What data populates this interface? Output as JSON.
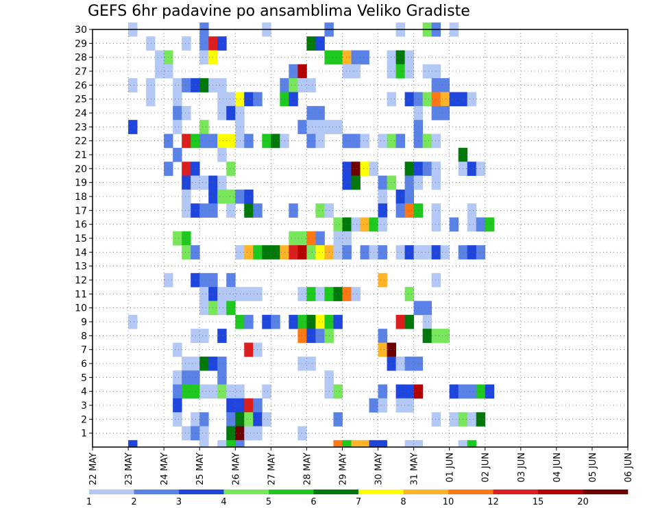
{
  "chart_data": {
    "type": "heatmap",
    "title": "GEFS 6hr padavine po ansamblima Veliko Gradiste",
    "xlabel": "",
    "ylabel": "",
    "x_tick_labels": [
      "22 MAY",
      "23 MAY",
      "24 MAY",
      "25 MAY",
      "26 MAY",
      "27 MAY",
      "28 MAY",
      "29 MAY",
      "30 MAY",
      "31 MAY",
      "01 JUN",
      "02 JUN",
      "03 JUN",
      "04 JUN",
      "05 JUN",
      "06 JUN"
    ],
    "x_range_days": [
      0,
      15
    ],
    "y_tick_labels": [
      "1",
      "2",
      "3",
      "4",
      "5",
      "6",
      "7",
      "8",
      "9",
      "10",
      "11",
      "12",
      "13",
      "14",
      "15",
      "16",
      "17",
      "18",
      "19",
      "20",
      "21",
      "22",
      "23",
      "24",
      "25",
      "26",
      "27",
      "28",
      "29",
      "30"
    ],
    "y_range": [
      0,
      30
    ],
    "grid": true,
    "legend": {
      "placement": "bottom",
      "colors": [
        "#b4c8f5",
        "#5a82e6",
        "#1e46dc",
        "#78e65a",
        "#1ec81e",
        "#00780a",
        "#ffff00",
        "#ffb428",
        "#ff7814",
        "#dc1e1e",
        "#b40000",
        "#6e0000"
      ],
      "labels": [
        "1",
        "2",
        "3",
        "4",
        "5",
        "6",
        "7",
        "8",
        "10",
        "12",
        "15",
        "20"
      ]
    },
    "thresholds_mm": [
      1,
      2,
      3,
      4,
      5,
      6,
      7,
      8,
      10,
      12,
      15,
      20
    ],
    "time_step_hours": 6,
    "cells_encoding": "[member, step_index, color_class]; step_index 0 = 22 MAY 00Z, 4 steps per day; color_class 0..11 maps to legend colors",
    "cells": [
      [
        30,
        4,
        0
      ],
      [
        30,
        12,
        1
      ],
      [
        30,
        19,
        0
      ],
      [
        30,
        26,
        1
      ],
      [
        30,
        34,
        0
      ],
      [
        30,
        37,
        3
      ],
      [
        30,
        38,
        1
      ],
      [
        30,
        40,
        0
      ],
      [
        29,
        6,
        0
      ],
      [
        29,
        10,
        0
      ],
      [
        29,
        12,
        1
      ],
      [
        29,
        13,
        9
      ],
      [
        29,
        14,
        2
      ],
      [
        29,
        24,
        5
      ],
      [
        29,
        25,
        2
      ],
      [
        28,
        7,
        0
      ],
      [
        28,
        8,
        3
      ],
      [
        28,
        12,
        0
      ],
      [
        28,
        13,
        6
      ],
      [
        28,
        26,
        4
      ],
      [
        28,
        27,
        4
      ],
      [
        28,
        28,
        7
      ],
      [
        28,
        29,
        1
      ],
      [
        28,
        30,
        1
      ],
      [
        28,
        33,
        0
      ],
      [
        28,
        34,
        5
      ],
      [
        28,
        35,
        0
      ],
      [
        27,
        7,
        0
      ],
      [
        27,
        8,
        0
      ],
      [
        27,
        22,
        1
      ],
      [
        27,
        23,
        10
      ],
      [
        27,
        28,
        0
      ],
      [
        27,
        29,
        0
      ],
      [
        27,
        33,
        0
      ],
      [
        27,
        34,
        4
      ],
      [
        27,
        35,
        0
      ],
      [
        27,
        37,
        0
      ],
      [
        27,
        38,
        0
      ],
      [
        26,
        4,
        0
      ],
      [
        26,
        6,
        0
      ],
      [
        26,
        9,
        0
      ],
      [
        26,
        10,
        1
      ],
      [
        26,
        11,
        2
      ],
      [
        26,
        12,
        5
      ],
      [
        26,
        13,
        0
      ],
      [
        26,
        14,
        0
      ],
      [
        26,
        21,
        1
      ],
      [
        26,
        22,
        3
      ],
      [
        26,
        23,
        0
      ],
      [
        26,
        24,
        0
      ],
      [
        26,
        38,
        1
      ],
      [
        26,
        39,
        1
      ],
      [
        25,
        6,
        0
      ],
      [
        25,
        9,
        0
      ],
      [
        25,
        14,
        0
      ],
      [
        25,
        15,
        0
      ],
      [
        25,
        16,
        6
      ],
      [
        25,
        17,
        2
      ],
      [
        25,
        18,
        1
      ],
      [
        25,
        21,
        4
      ],
      [
        25,
        22,
        2
      ],
      [
        25,
        33,
        0
      ],
      [
        25,
        35,
        2
      ],
      [
        25,
        36,
        1
      ],
      [
        25,
        37,
        3
      ],
      [
        25,
        38,
        8
      ],
      [
        25,
        39,
        7
      ],
      [
        25,
        40,
        2
      ],
      [
        25,
        41,
        2
      ],
      [
        25,
        42,
        0
      ],
      [
        24,
        9,
        1
      ],
      [
        24,
        10,
        0
      ],
      [
        24,
        14,
        0
      ],
      [
        24,
        15,
        2
      ],
      [
        24,
        16,
        0
      ],
      [
        24,
        24,
        1
      ],
      [
        24,
        25,
        1
      ],
      [
        24,
        36,
        0
      ],
      [
        24,
        38,
        1
      ],
      [
        24,
        39,
        1
      ],
      [
        23,
        4,
        2
      ],
      [
        23,
        9,
        0
      ],
      [
        23,
        12,
        3
      ],
      [
        23,
        16,
        0
      ],
      [
        23,
        23,
        1
      ],
      [
        23,
        24,
        0
      ],
      [
        23,
        25,
        0
      ],
      [
        23,
        26,
        0
      ],
      [
        23,
        27,
        0
      ],
      [
        23,
        36,
        1
      ],
      [
        22,
        8,
        1
      ],
      [
        22,
        10,
        9
      ],
      [
        22,
        11,
        4
      ],
      [
        22,
        12,
        1
      ],
      [
        22,
        13,
        1
      ],
      [
        22,
        14,
        6
      ],
      [
        22,
        15,
        6
      ],
      [
        22,
        16,
        0
      ],
      [
        22,
        17,
        1
      ],
      [
        22,
        19,
        4
      ],
      [
        22,
        20,
        5
      ],
      [
        22,
        21,
        0
      ],
      [
        22,
        24,
        1
      ],
      [
        22,
        25,
        0
      ],
      [
        22,
        28,
        1
      ],
      [
        22,
        29,
        1
      ],
      [
        22,
        30,
        0
      ],
      [
        22,
        32,
        0
      ],
      [
        22,
        33,
        3
      ],
      [
        22,
        34,
        1
      ],
      [
        22,
        36,
        1
      ],
      [
        22,
        37,
        3
      ],
      [
        22,
        38,
        0
      ],
      [
        21,
        9,
        1
      ],
      [
        21,
        14,
        0
      ],
      [
        21,
        41,
        5
      ],
      [
        20,
        8,
        1
      ],
      [
        20,
        10,
        9
      ],
      [
        20,
        11,
        2
      ],
      [
        20,
        15,
        3
      ],
      [
        20,
        28,
        2
      ],
      [
        20,
        29,
        11
      ],
      [
        20,
        30,
        6
      ],
      [
        20,
        31,
        0
      ],
      [
        20,
        35,
        5
      ],
      [
        20,
        36,
        2
      ],
      [
        20,
        37,
        1
      ],
      [
        20,
        38,
        0
      ],
      [
        20,
        41,
        0
      ],
      [
        20,
        42,
        2
      ],
      [
        20,
        43,
        0
      ],
      [
        19,
        10,
        2
      ],
      [
        19,
        11,
        0
      ],
      [
        19,
        12,
        0
      ],
      [
        19,
        13,
        2
      ],
      [
        19,
        14,
        0
      ],
      [
        19,
        28,
        2
      ],
      [
        19,
        29,
        5
      ],
      [
        19,
        32,
        1
      ],
      [
        19,
        33,
        3
      ],
      [
        19,
        35,
        1
      ],
      [
        19,
        36,
        0
      ],
      [
        19,
        38,
        0
      ],
      [
        18,
        10,
        0
      ],
      [
        18,
        13,
        2
      ],
      [
        18,
        14,
        3
      ],
      [
        18,
        15,
        3
      ],
      [
        18,
        16,
        1
      ],
      [
        18,
        17,
        2
      ],
      [
        18,
        32,
        0
      ],
      [
        18,
        34,
        2
      ],
      [
        18,
        35,
        1
      ],
      [
        17,
        10,
        0
      ],
      [
        17,
        11,
        2
      ],
      [
        17,
        12,
        1
      ],
      [
        17,
        13,
        1
      ],
      [
        17,
        15,
        0
      ],
      [
        17,
        17,
        5
      ],
      [
        17,
        18,
        1
      ],
      [
        17,
        22,
        1
      ],
      [
        17,
        25,
        3
      ],
      [
        17,
        26,
        0
      ],
      [
        17,
        32,
        2
      ],
      [
        17,
        34,
        1
      ],
      [
        17,
        35,
        8
      ],
      [
        17,
        36,
        4
      ],
      [
        17,
        38,
        0
      ],
      [
        17,
        42,
        0
      ],
      [
        16,
        27,
        3
      ],
      [
        16,
        28,
        5
      ],
      [
        16,
        29,
        0
      ],
      [
        16,
        30,
        7
      ],
      [
        16,
        31,
        4
      ],
      [
        16,
        32,
        0
      ],
      [
        16,
        38,
        0
      ],
      [
        16,
        40,
        1
      ],
      [
        16,
        42,
        0
      ],
      [
        16,
        43,
        1
      ],
      [
        16,
        44,
        4
      ],
      [
        15,
        9,
        3
      ],
      [
        15,
        10,
        4
      ],
      [
        15,
        22,
        3
      ],
      [
        15,
        23,
        3
      ],
      [
        15,
        24,
        8
      ],
      [
        15,
        25,
        1
      ],
      [
        15,
        27,
        0
      ],
      [
        15,
        28,
        0
      ],
      [
        14,
        10,
        3
      ],
      [
        14,
        11,
        1
      ],
      [
        14,
        16,
        0
      ],
      [
        14,
        17,
        7
      ],
      [
        14,
        18,
        4
      ],
      [
        14,
        19,
        5
      ],
      [
        14,
        20,
        5
      ],
      [
        14,
        21,
        7
      ],
      [
        14,
        22,
        9
      ],
      [
        14,
        23,
        10
      ],
      [
        14,
        24,
        3
      ],
      [
        14,
        25,
        6
      ],
      [
        14,
        26,
        7
      ],
      [
        14,
        27,
        0
      ],
      [
        14,
        28,
        1
      ],
      [
        14,
        30,
        1
      ],
      [
        14,
        31,
        0
      ],
      [
        14,
        32,
        1
      ],
      [
        14,
        34,
        0
      ],
      [
        14,
        35,
        2
      ],
      [
        14,
        36,
        0
      ],
      [
        14,
        37,
        0
      ],
      [
        14,
        38,
        2
      ],
      [
        14,
        39,
        0
      ],
      [
        14,
        41,
        1
      ],
      [
        14,
        42,
        2
      ],
      [
        14,
        43,
        1
      ],
      [
        12,
        8,
        0
      ],
      [
        12,
        11,
        2
      ],
      [
        12,
        12,
        1
      ],
      [
        12,
        13,
        1
      ],
      [
        12,
        15,
        1
      ],
      [
        12,
        32,
        7
      ],
      [
        12,
        38,
        0
      ],
      [
        11,
        12,
        0
      ],
      [
        11,
        13,
        2
      ],
      [
        11,
        14,
        0
      ],
      [
        11,
        15,
        0
      ],
      [
        11,
        16,
        0
      ],
      [
        11,
        17,
        0
      ],
      [
        11,
        18,
        0
      ],
      [
        11,
        23,
        0
      ],
      [
        11,
        24,
        4
      ],
      [
        11,
        25,
        0
      ],
      [
        11,
        26,
        4
      ],
      [
        11,
        27,
        5
      ],
      [
        11,
        28,
        8
      ],
      [
        11,
        29,
        0
      ],
      [
        11,
        35,
        3
      ],
      [
        10,
        12,
        0
      ],
      [
        10,
        13,
        3
      ],
      [
        10,
        14,
        0
      ],
      [
        10,
        15,
        4
      ],
      [
        10,
        36,
        1
      ],
      [
        10,
        37,
        1
      ],
      [
        9,
        4,
        0
      ],
      [
        9,
        16,
        4
      ],
      [
        9,
        17,
        1
      ],
      [
        9,
        19,
        2
      ],
      [
        9,
        20,
        1
      ],
      [
        9,
        22,
        2
      ],
      [
        9,
        23,
        4
      ],
      [
        9,
        24,
        5
      ],
      [
        9,
        25,
        6
      ],
      [
        9,
        26,
        4
      ],
      [
        9,
        27,
        2
      ],
      [
        9,
        34,
        9
      ],
      [
        9,
        35,
        5
      ],
      [
        9,
        37,
        0
      ],
      [
        8,
        11,
        0
      ],
      [
        8,
        12,
        0
      ],
      [
        8,
        14,
        2
      ],
      [
        8,
        23,
        8
      ],
      [
        8,
        24,
        2
      ],
      [
        8,
        25,
        1
      ],
      [
        8,
        26,
        3
      ],
      [
        8,
        32,
        1
      ],
      [
        8,
        37,
        5
      ],
      [
        8,
        38,
        3
      ],
      [
        8,
        39,
        3
      ],
      [
        7,
        9,
        0
      ],
      [
        7,
        17,
        9
      ],
      [
        7,
        18,
        0
      ],
      [
        7,
        32,
        7
      ],
      [
        7,
        33,
        11
      ],
      [
        6,
        10,
        0
      ],
      [
        6,
        11,
        0
      ],
      [
        6,
        12,
        5
      ],
      [
        6,
        13,
        2
      ],
      [
        6,
        14,
        1
      ],
      [
        6,
        23,
        0
      ],
      [
        6,
        24,
        0
      ],
      [
        6,
        33,
        2
      ],
      [
        6,
        34,
        0
      ],
      [
        6,
        35,
        1
      ],
      [
        6,
        36,
        1
      ],
      [
        5,
        9,
        0
      ],
      [
        5,
        10,
        1
      ],
      [
        5,
        11,
        1
      ],
      [
        5,
        14,
        1
      ],
      [
        5,
        26,
        0
      ],
      [
        4,
        9,
        1
      ],
      [
        4,
        10,
        4
      ],
      [
        4,
        11,
        4
      ],
      [
        4,
        12,
        0
      ],
      [
        4,
        13,
        0
      ],
      [
        4,
        14,
        3
      ],
      [
        4,
        15,
        0
      ],
      [
        4,
        16,
        0
      ],
      [
        4,
        19,
        0
      ],
      [
        4,
        26,
        0
      ],
      [
        4,
        27,
        3
      ],
      [
        4,
        32,
        1
      ],
      [
        4,
        34,
        2
      ],
      [
        4,
        35,
        2
      ],
      [
        4,
        36,
        10
      ],
      [
        4,
        40,
        2
      ],
      [
        4,
        41,
        1
      ],
      [
        4,
        42,
        1
      ],
      [
        4,
        43,
        4
      ],
      [
        4,
        44,
        2
      ],
      [
        3,
        9,
        2
      ],
      [
        3,
        15,
        2
      ],
      [
        3,
        16,
        2
      ],
      [
        3,
        17,
        9
      ],
      [
        3,
        18,
        1
      ],
      [
        3,
        31,
        1
      ],
      [
        3,
        32,
        0
      ],
      [
        3,
        34,
        0
      ],
      [
        3,
        35,
        0
      ],
      [
        2,
        9,
        0
      ],
      [
        2,
        11,
        0
      ],
      [
        2,
        12,
        1
      ],
      [
        2,
        15,
        1
      ],
      [
        2,
        16,
        5
      ],
      [
        2,
        17,
        3
      ],
      [
        2,
        18,
        2
      ],
      [
        2,
        19,
        0
      ],
      [
        2,
        27,
        1
      ],
      [
        2,
        38,
        0
      ],
      [
        2,
        40,
        0
      ],
      [
        2,
        41,
        3
      ],
      [
        2,
        42,
        0
      ],
      [
        2,
        43,
        5
      ],
      [
        1,
        10,
        0
      ],
      [
        1,
        11,
        1
      ],
      [
        1,
        12,
        0
      ],
      [
        1,
        15,
        5
      ],
      [
        1,
        16,
        11
      ],
      [
        1,
        17,
        0
      ],
      [
        1,
        18,
        0
      ],
      [
        1,
        23,
        0
      ],
      [
        0,
        4,
        2
      ],
      [
        0,
        12,
        0
      ],
      [
        0,
        14,
        0
      ],
      [
        0,
        15,
        4
      ],
      [
        0,
        16,
        1
      ],
      [
        0,
        27,
        8
      ],
      [
        0,
        28,
        4
      ],
      [
        0,
        29,
        7
      ],
      [
        0,
        30,
        7
      ],
      [
        0,
        31,
        2
      ],
      [
        0,
        32,
        2
      ],
      [
        0,
        35,
        0
      ],
      [
        0,
        36,
        0
      ],
      [
        0,
        41,
        0
      ],
      [
        0,
        42,
        4
      ]
    ]
  }
}
